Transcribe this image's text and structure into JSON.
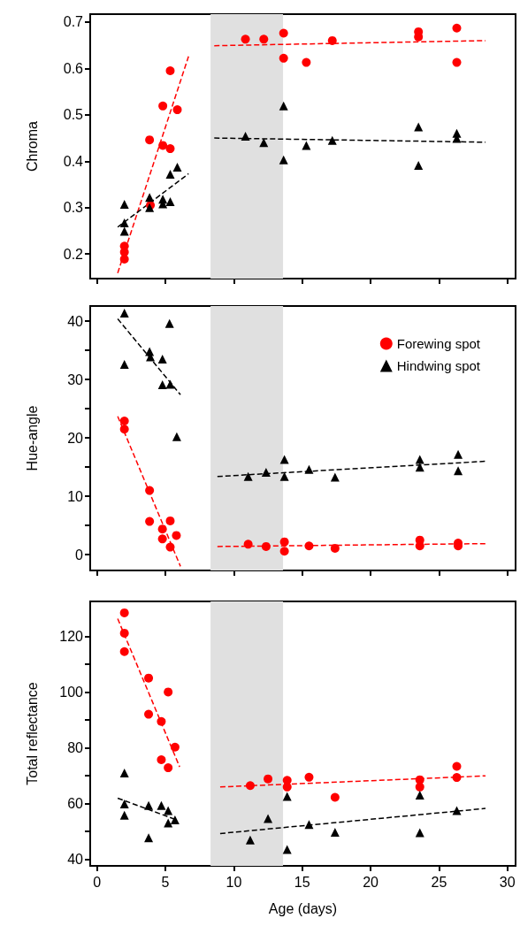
{
  "chart_data": [
    {
      "type": "scatter",
      "ylabel": "Chroma",
      "xlim": [
        -0.5,
        30.6
      ],
      "xticks": [
        0,
        5,
        10,
        15,
        20,
        25,
        30
      ],
      "ylim": [
        0.147,
        0.717
      ],
      "yticks": [
        0.2,
        0.3,
        0.4,
        0.5,
        0.6,
        0.7
      ],
      "tick_labels": "y",
      "legend": false,
      "grid": false,
      "bands": [
        {
          "axis": "x",
          "from": 8.3,
          "to": 13.6,
          "color": "#e0e0e0"
        }
      ],
      "series": [
        {
          "color": "#ff0000",
          "marker": "circle",
          "x": [
            2.0,
            2.0,
            2.0,
            3.84,
            3.9,
            4.81,
            4.81,
            5.35,
            5.35,
            5.87,
            10.85,
            12.19,
            13.64,
            13.64,
            15.3,
            17.2,
            23.5,
            23.5,
            26.3,
            26.3
          ],
          "values": [
            0.217,
            0.204,
            0.189,
            0.446,
            0.305,
            0.519,
            0.434,
            0.595,
            0.427,
            0.511,
            0.663,
            0.663,
            0.676,
            0.622,
            0.613,
            0.66,
            0.679,
            0.668,
            0.687,
            0.613
          ]
        },
        {
          "color": "#000000",
          "marker": "triangle",
          "x": [
            2.0,
            2.0,
            2.0,
            3.84,
            3.84,
            4.81,
            4.81,
            5.35,
            5.35,
            5.87,
            10.85,
            12.19,
            13.64,
            13.64,
            15.3,
            17.2,
            23.5,
            23.5,
            26.3,
            26.3
          ],
          "values": [
            0.307,
            0.267,
            0.249,
            0.322,
            0.3,
            0.318,
            0.308,
            0.372,
            0.313,
            0.387,
            0.454,
            0.44,
            0.519,
            0.403,
            0.434,
            0.445,
            0.474,
            0.391,
            0.46,
            0.449
          ]
        },
        {
          "type": "line",
          "color": "#ff0000",
          "line_style": "dashed",
          "marker": "none",
          "x": [
            1.51,
            6.69
          ],
          "values": [
            0.159,
            0.626
          ]
        },
        {
          "type": "line",
          "color": "#000000",
          "line_style": "dashed",
          "marker": "none",
          "x": [
            1.51,
            6.69
          ],
          "values": [
            0.258,
            0.373
          ]
        },
        {
          "type": "line",
          "color": "#ff0000",
          "line_style": "dashed",
          "marker": "none",
          "x": [
            8.57,
            28.4
          ],
          "values": [
            0.649,
            0.66
          ]
        },
        {
          "type": "line",
          "color": "#000000",
          "line_style": "dashed",
          "marker": "none",
          "x": [
            8.57,
            28.4
          ],
          "values": [
            0.45,
            0.441
          ]
        }
      ]
    },
    {
      "type": "scatter",
      "ylabel": "Hue-angle",
      "xlim": [
        -0.5,
        30.6
      ],
      "xticks": [
        0,
        5,
        10,
        15,
        20,
        25,
        30
      ],
      "ylim": [
        -2.7,
        42.6
      ],
      "yticks": [
        0,
        {
          "value": 5,
          "label": null
        },
        10,
        {
          "value": 15,
          "label": null
        },
        20,
        {
          "value": 25,
          "label": null
        },
        30,
        {
          "value": 35,
          "label": null
        },
        40
      ],
      "tick_labels": "y",
      "legend": "top right",
      "grid": false,
      "bands": [
        {
          "axis": "x",
          "from": 8.3,
          "to": 13.6,
          "color": "#e0e0e0"
        }
      ],
      "series": [
        {
          "name": "Forewing spot",
          "color": "#ff0000",
          "marker": "circle",
          "x": [
            2.0,
            2.0,
            3.84,
            3.84,
            4.78,
            4.78,
            5.35,
            5.35,
            5.8,
            11.05,
            12.36,
            13.7,
            13.7,
            15.5,
            17.4,
            23.6,
            23.6,
            26.4,
            26.4
          ],
          "values": [
            22.9,
            21.5,
            11.0,
            5.7,
            4.4,
            2.7,
            5.8,
            1.3,
            3.3,
            1.8,
            1.4,
            2.2,
            0.6,
            1.5,
            1.1,
            2.5,
            1.5,
            2.0,
            1.5
          ]
        },
        {
          "name": "Hindwing spot",
          "color": "#000000",
          "marker": "triangle",
          "x": [
            2.0,
            2.0,
            3.84,
            3.9,
            4.78,
            4.78,
            5.35,
            5.3,
            5.83,
            11.05,
            12.36,
            13.7,
            13.7,
            15.5,
            17.4,
            23.6,
            23.6,
            26.4,
            26.4
          ],
          "values": [
            41.4,
            32.6,
            34.8,
            33.9,
            33.5,
            29.1,
            29.2,
            39.6,
            20.2,
            13.4,
            14.1,
            16.3,
            13.4,
            14.6,
            13.3,
            16.3,
            15.0,
            17.2,
            14.4
          ]
        },
        {
          "type": "line",
          "color": "#ff0000",
          "line_style": "dashed",
          "marker": "none",
          "x": [
            1.51,
            6.1
          ],
          "values": [
            23.7,
            -2.0
          ]
        },
        {
          "type": "line",
          "color": "#000000",
          "line_style": "dashed",
          "marker": "none",
          "x": [
            1.51,
            6.1
          ],
          "values": [
            40.4,
            27.4
          ]
        },
        {
          "type": "line",
          "color": "#ff0000",
          "line_style": "dashed",
          "marker": "none",
          "x": [
            8.8,
            28.4
          ],
          "values": [
            1.4,
            1.9
          ]
        },
        {
          "type": "line",
          "color": "#000000",
          "line_style": "dashed",
          "marker": "none",
          "x": [
            8.8,
            28.4
          ],
          "values": [
            13.4,
            16.0
          ]
        }
      ]
    },
    {
      "type": "scatter",
      "ylabel": "Total reflectance",
      "xlabel": "Age (days)",
      "xlim": [
        -0.5,
        30.6
      ],
      "xticks": [
        0,
        5,
        10,
        15,
        20,
        25,
        30
      ],
      "ylim": [
        37.6,
        132.5
      ],
      "yticks": [
        40,
        {
          "value": 50,
          "label": null
        },
        60,
        {
          "value": 70,
          "label": null
        },
        80,
        {
          "value": 90,
          "label": null
        },
        100,
        {
          "value": 110,
          "label": null
        },
        120
      ],
      "legend": false,
      "grid": false,
      "bands": [
        {
          "axis": "x",
          "from": 8.3,
          "to": 13.6,
          "color": "#e0e0e0"
        }
      ],
      "series": [
        {
          "color": "#ff0000",
          "marker": "circle",
          "x": [
            2.0,
            2.0,
            2.0,
            3.77,
            3.77,
            4.7,
            4.7,
            5.2,
            5.2,
            5.7,
            11.2,
            12.5,
            13.9,
            13.9,
            15.5,
            17.4,
            23.6,
            23.6,
            26.3,
            26.3
          ],
          "values": [
            128.4,
            121.1,
            114.5,
            105.0,
            92.0,
            89.4,
            75.7,
            100.0,
            72.8,
            80.2,
            66.4,
            68.8,
            68.3,
            65.9,
            69.4,
            62.2,
            68.5,
            65.9,
            73.3,
            69.3
          ]
        },
        {
          "color": "#000000",
          "marker": "triangle",
          "x": [
            2.0,
            2.0,
            2.0,
            3.77,
            3.77,
            4.7,
            5.2,
            5.2,
            5.7,
            11.2,
            12.5,
            13.9,
            13.9,
            15.5,
            17.4,
            23.6,
            23.6,
            26.3
          ],
          "values": [
            70.9,
            59.8,
            55.8,
            47.7,
            59.3,
            59.3,
            57.4,
            53.0,
            54.1,
            46.9,
            54.6,
            62.5,
            43.5,
            52.4,
            49.7,
            63.0,
            49.5,
            57.4
          ]
        },
        {
          "type": "line",
          "color": "#ff0000",
          "line_style": "dashed",
          "marker": "none",
          "x": [
            1.51,
            6.04
          ],
          "values": [
            126.3,
            73.1
          ]
        },
        {
          "type": "line",
          "color": "#000000",
          "line_style": "dashed",
          "marker": "none",
          "x": [
            1.51,
            5.7
          ],
          "values": [
            61.9,
            54.3
          ]
        },
        {
          "type": "line",
          "color": "#ff0000",
          "line_style": "dashed",
          "marker": "none",
          "x": [
            9.0,
            28.4
          ],
          "values": [
            65.9,
            69.9
          ]
        },
        {
          "type": "line",
          "color": "#000000",
          "line_style": "dashed",
          "marker": "none",
          "x": [
            9.0,
            28.4
          ],
          "values": [
            49.2,
            58.2
          ]
        }
      ]
    }
  ]
}
